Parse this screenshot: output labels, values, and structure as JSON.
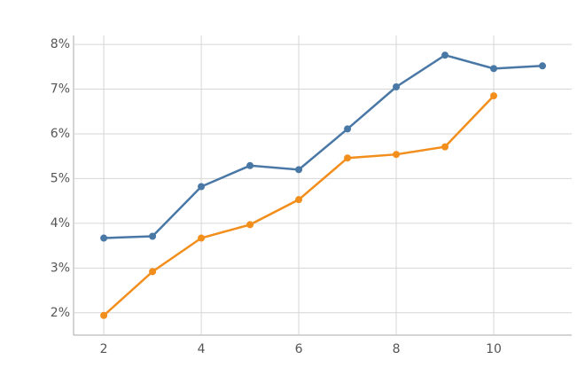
{
  "chart_data": {
    "type": "line",
    "x": [
      2,
      3,
      4,
      5,
      6,
      7,
      8,
      9,
      10,
      11
    ],
    "series": [
      {
        "color": "#4a78a6",
        "values": [
          3.67,
          3.71,
          4.82,
          5.29,
          5.2,
          6.11,
          7.05,
          7.76,
          7.46,
          7.52
        ]
      },
      {
        "color": "#f28e1c",
        "values": [
          1.94,
          2.92,
          3.67,
          3.97,
          4.53,
          5.46,
          5.54,
          5.71,
          6.85,
          null
        ]
      }
    ],
    "xlim": [
      1.38,
      11.6
    ],
    "ylim": [
      1.5,
      8.2
    ],
    "xticks": [
      2,
      4,
      6,
      8,
      10
    ],
    "yticks": [
      {
        "value": 2,
        "label": "2%"
      },
      {
        "value": 3,
        "label": "3%"
      },
      {
        "value": 4,
        "label": "4%"
      },
      {
        "value": 5,
        "label": "5%"
      },
      {
        "value": 6,
        "label": "6%"
      },
      {
        "value": 7,
        "label": "7%"
      },
      {
        "value": 8,
        "label": "8%"
      }
    ],
    "grid": true
  }
}
